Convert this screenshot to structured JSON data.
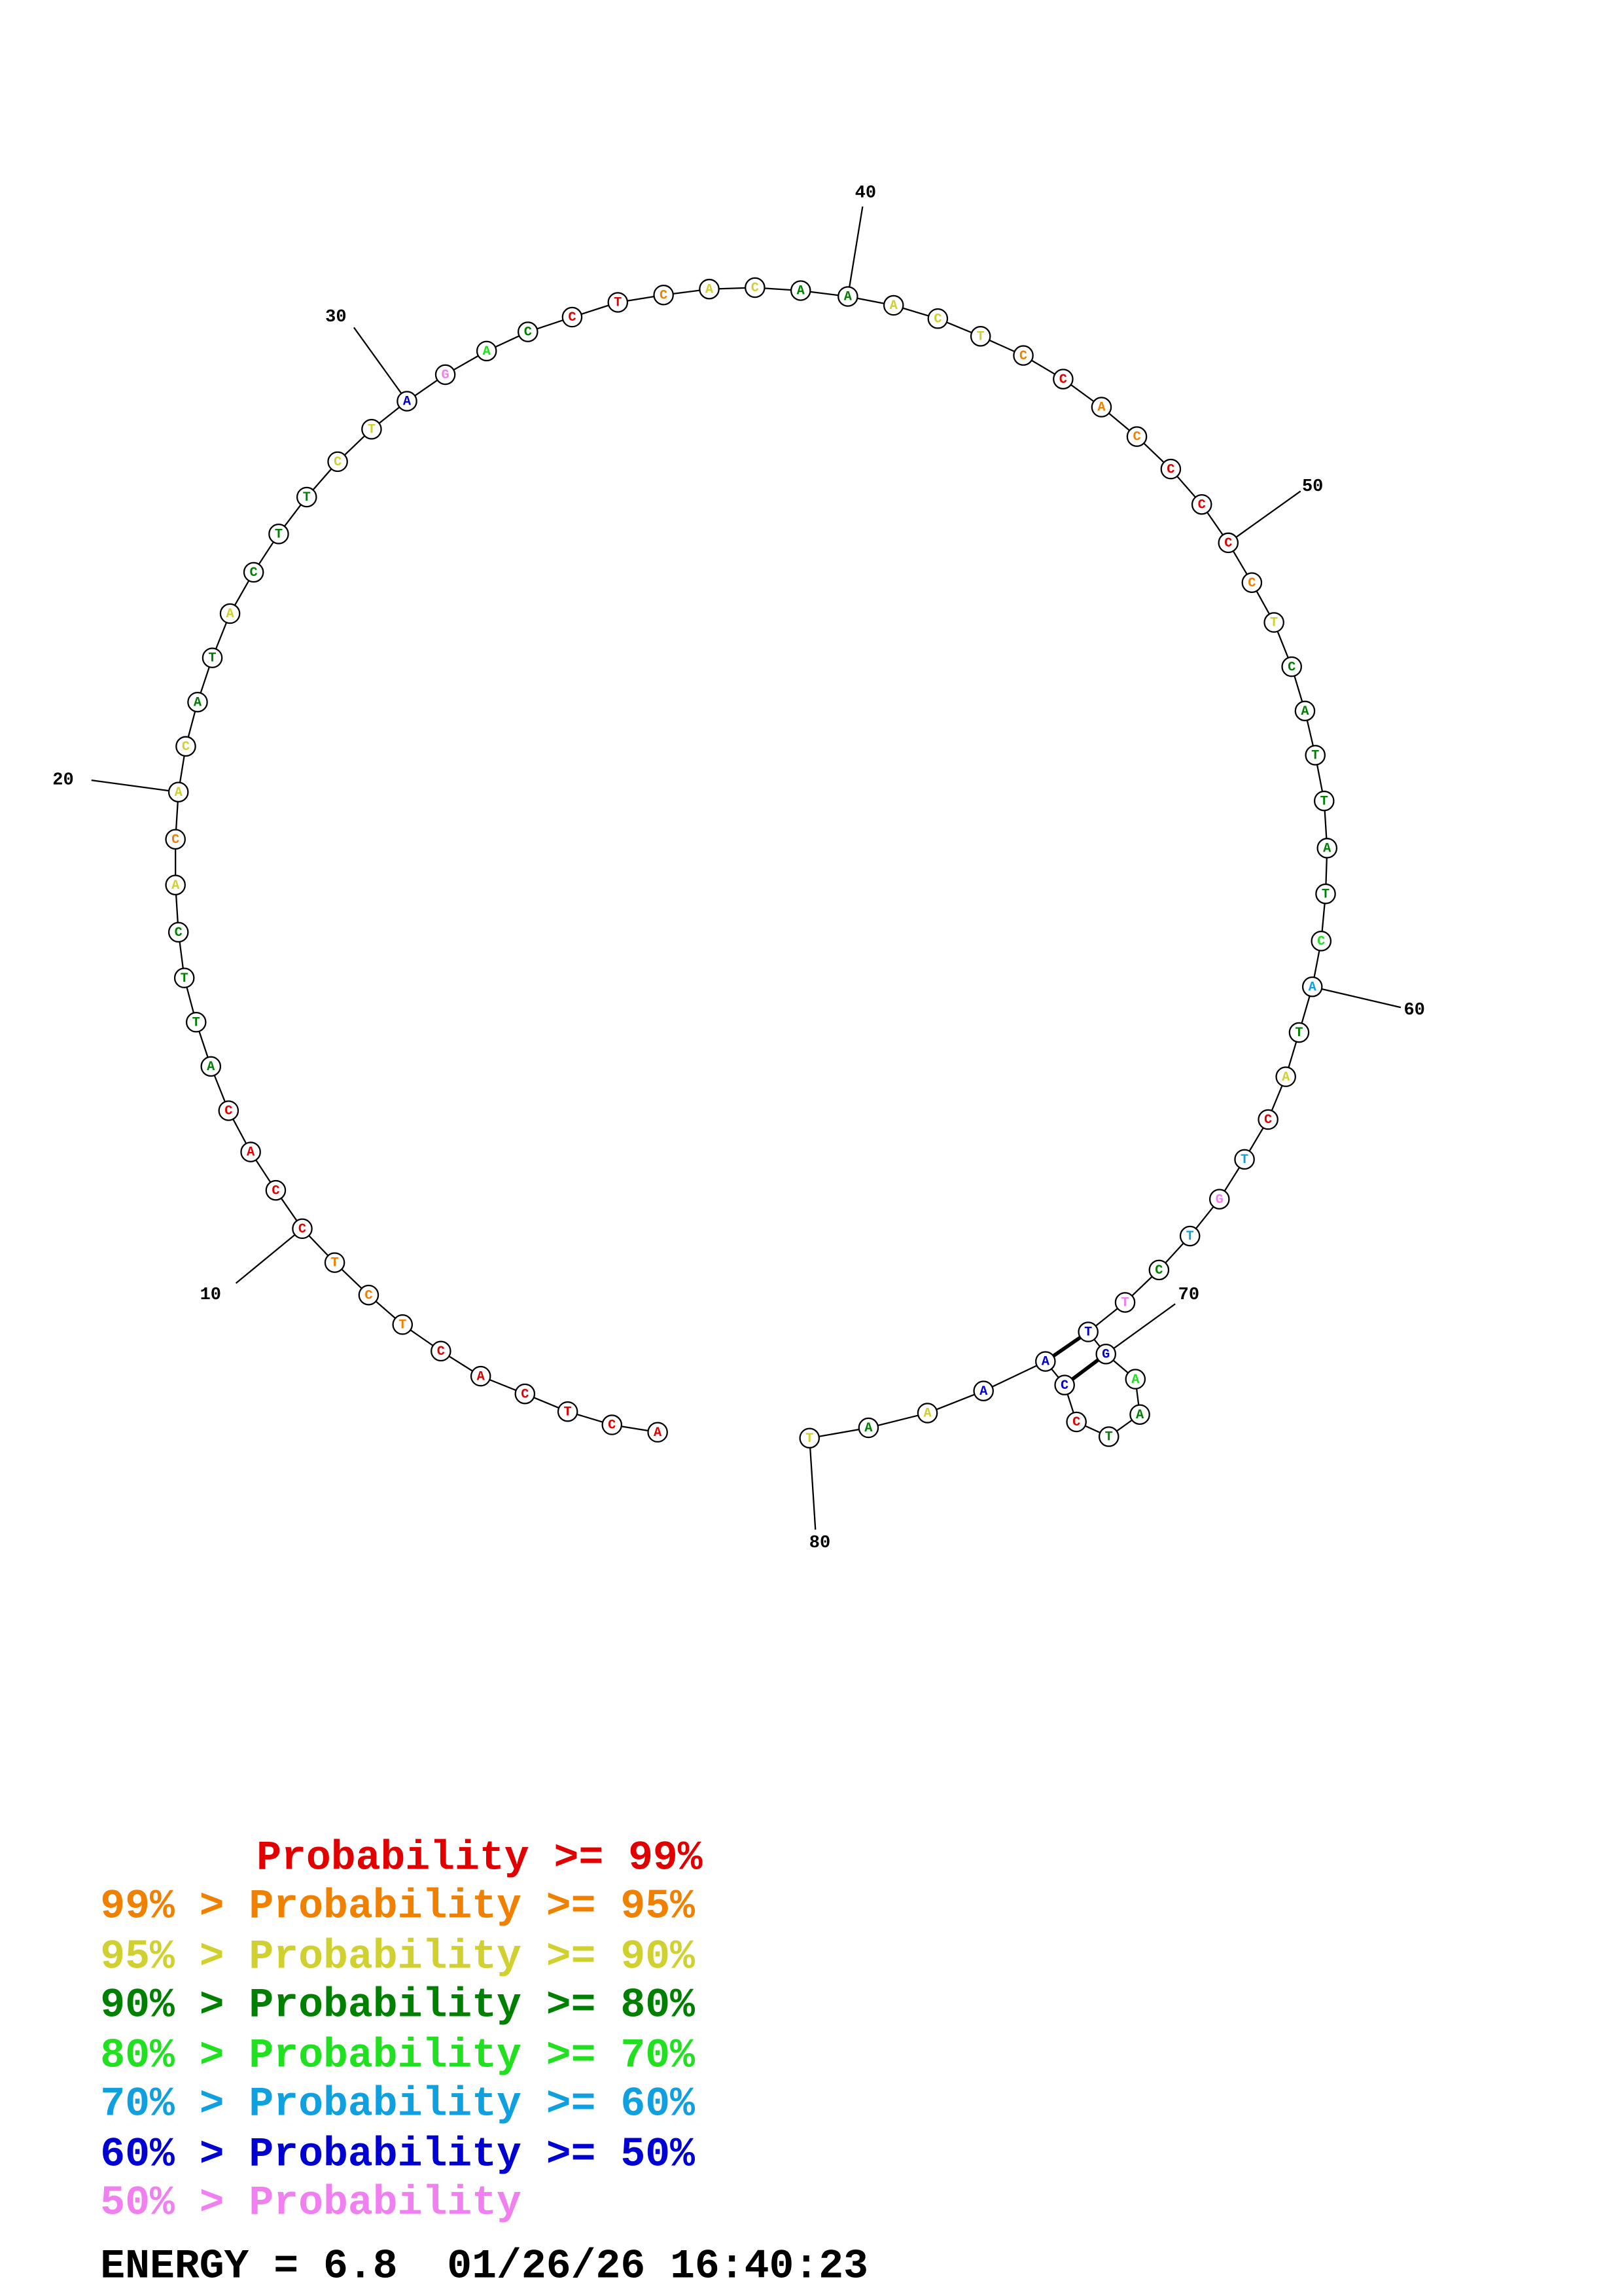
{
  "nodes": [
    {
      "letter": "A",
      "color": "#e00000"
    },
    {
      "letter": "C",
      "color": "#e00000"
    },
    {
      "letter": "T",
      "color": "#e00000"
    },
    {
      "letter": "C",
      "color": "#e00000"
    },
    {
      "letter": "A",
      "color": "#e00000"
    },
    {
      "letter": "C",
      "color": "#e00000"
    },
    {
      "letter": "T",
      "color": "#f08000"
    },
    {
      "letter": "C",
      "color": "#f08000"
    },
    {
      "letter": "T",
      "color": "#f08000"
    },
    {
      "letter": "C",
      "color": "#e00000"
    },
    {
      "letter": "C",
      "color": "#e00000"
    },
    {
      "letter": "A",
      "color": "#e00000"
    },
    {
      "letter": "C",
      "color": "#e00000"
    },
    {
      "letter": "A",
      "color": "#008000"
    },
    {
      "letter": "T",
      "color": "#008000"
    },
    {
      "letter": "T",
      "color": "#008000"
    },
    {
      "letter": "C",
      "color": "#008000"
    },
    {
      "letter": "A",
      "color": "#d0d030"
    },
    {
      "letter": "C",
      "color": "#f08000"
    },
    {
      "letter": "A",
      "color": "#d0d030"
    },
    {
      "letter": "C",
      "color": "#d0d030"
    },
    {
      "letter": "A",
      "color": "#008000"
    },
    {
      "letter": "T",
      "color": "#008000"
    },
    {
      "letter": "A",
      "color": "#d0d030"
    },
    {
      "letter": "C",
      "color": "#008000"
    },
    {
      "letter": "T",
      "color": "#008000"
    },
    {
      "letter": "T",
      "color": "#008000"
    },
    {
      "letter": "C",
      "color": "#d0d030"
    },
    {
      "letter": "T",
      "color": "#d0d030"
    },
    {
      "letter": "A",
      "color": "#0000d0"
    },
    {
      "letter": "G",
      "color": "#f080f0"
    },
    {
      "letter": "A",
      "color": "#20e020"
    },
    {
      "letter": "C",
      "color": "#008000"
    },
    {
      "letter": "C",
      "color": "#e00000"
    },
    {
      "letter": "T",
      "color": "#e00000"
    },
    {
      "letter": "C",
      "color": "#f08000"
    },
    {
      "letter": "A",
      "color": "#d0d030"
    },
    {
      "letter": "C",
      "color": "#d0d030"
    },
    {
      "letter": "A",
      "color": "#008000"
    },
    {
      "letter": "A",
      "color": "#008000"
    },
    {
      "letter": "A",
      "color": "#d0d030"
    },
    {
      "letter": "C",
      "color": "#d0d030"
    },
    {
      "letter": "T",
      "color": "#d0d030"
    },
    {
      "letter": "C",
      "color": "#f08000"
    },
    {
      "letter": "C",
      "color": "#e00000"
    },
    {
      "letter": "A",
      "color": "#f08000"
    },
    {
      "letter": "C",
      "color": "#f08000"
    },
    {
      "letter": "C",
      "color": "#e00000"
    },
    {
      "letter": "C",
      "color": "#e00000"
    },
    {
      "letter": "C",
      "color": "#e00000"
    },
    {
      "letter": "C",
      "color": "#f08000"
    },
    {
      "letter": "T",
      "color": "#d0d030"
    },
    {
      "letter": "C",
      "color": "#008000"
    },
    {
      "letter": "A",
      "color": "#008000"
    },
    {
      "letter": "T",
      "color": "#008000"
    },
    {
      "letter": "T",
      "color": "#008000"
    },
    {
      "letter": "A",
      "color": "#008000"
    },
    {
      "letter": "T",
      "color": "#008000"
    },
    {
      "letter": "C",
      "color": "#20e020"
    },
    {
      "letter": "A",
      "color": "#10a0e0"
    },
    {
      "letter": "T",
      "color": "#008000"
    },
    {
      "letter": "A",
      "color": "#d0d030"
    },
    {
      "letter": "C",
      "color": "#e00000"
    },
    {
      "letter": "T",
      "color": "#10a0e0"
    },
    {
      "letter": "G",
      "color": "#f080f0"
    },
    {
      "letter": "T",
      "color": "#10a0e0"
    },
    {
      "letter": "C",
      "color": "#008000"
    },
    {
      "letter": "T",
      "color": "#f080f0"
    },
    {
      "letter": "T",
      "color": "#0000d0"
    },
    {
      "letter": "G",
      "color": "#0000d0"
    },
    {
      "letter": "A",
      "color": "#20e020"
    },
    {
      "letter": "A",
      "color": "#008000"
    },
    {
      "letter": "T",
      "color": "#008000"
    },
    {
      "letter": "C",
      "color": "#e00000"
    },
    {
      "letter": "C",
      "color": "#0000d0"
    },
    {
      "letter": "A",
      "color": "#0000d0"
    },
    {
      "letter": "A",
      "color": "#0000d0"
    },
    {
      "letter": "A",
      "color": "#d0d030"
    },
    {
      "letter": "A",
      "color": "#008000"
    },
    {
      "letter": "T",
      "color": "#d0d030"
    }
  ],
  "position_labels": [
    "10",
    "20",
    "30",
    "40",
    "50",
    "60",
    "70",
    "80"
  ],
  "legend": [
    {
      "text": "Probability >= 99%",
      "color": "#e00000"
    },
    {
      "text": "99% > Probability >= 95%",
      "color": "#f08000"
    },
    {
      "text": "95% > Probability >= 90%",
      "color": "#d0d030"
    },
    {
      "text": "90% > Probability >= 80%",
      "color": "#008000"
    },
    {
      "text": "80% > Probability >= 70%",
      "color": "#20e020"
    },
    {
      "text": "70% > Probability >= 60%",
      "color": "#10a0e0"
    },
    {
      "text": "60% > Probability >= 50%",
      "color": "#0000d0"
    },
    {
      "text": "50% > Probability",
      "color": "#f080f0"
    }
  ],
  "footer": "ENERGY = 6.8  01/26/26 16:40:23"
}
